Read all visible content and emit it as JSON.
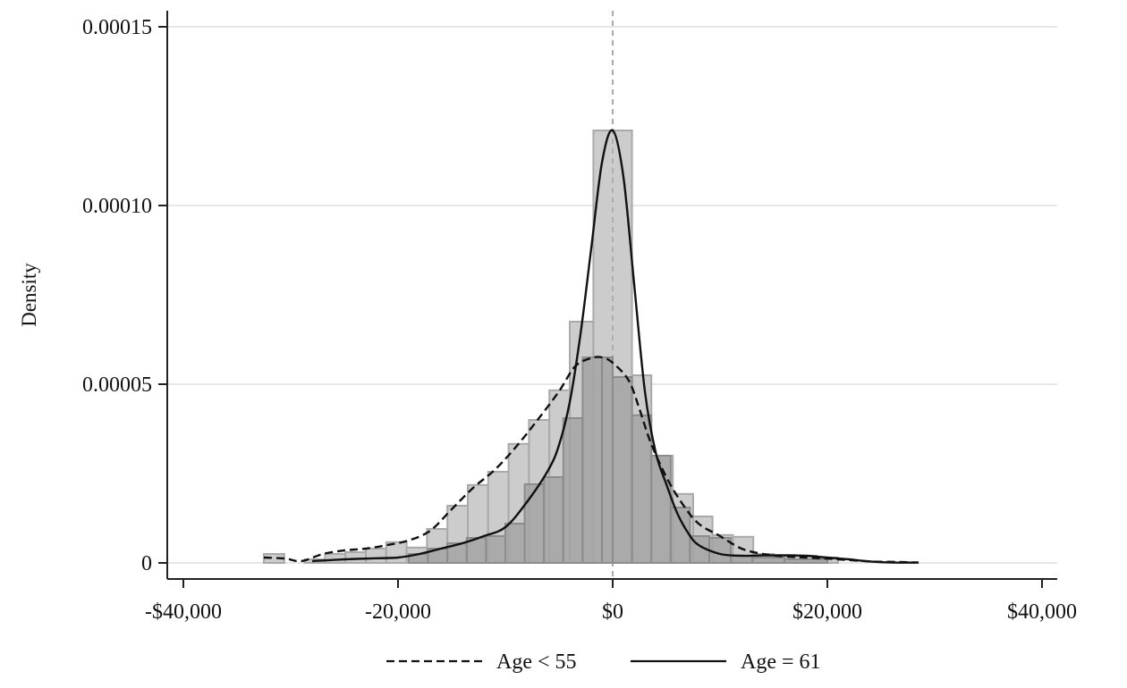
{
  "chart_data": {
    "type": "histogram+density",
    "title": "",
    "xlabel": "",
    "ylabel": "Density",
    "xlim": [
      -42000,
      42000
    ],
    "ylim": [
      0,
      0.00015
    ],
    "x_ticks": [
      -40000,
      -20000,
      0,
      20000,
      40000
    ],
    "x_tick_labels": [
      "-$40,000",
      "-20,000",
      "$0",
      "$20,000",
      "$40,000"
    ],
    "y_ticks": [
      0,
      5e-05,
      0.0001,
      0.00015
    ],
    "y_tick_labels": [
      "0",
      "0.00005",
      "0.00010",
      "0.00015"
    ],
    "grid": "horizontal",
    "reference_line": {
      "x": 0,
      "style": "dashed",
      "color": "#a0a0a0"
    },
    "legend_position": "bottom",
    "colors": {
      "light_bars_fill": "#c9c9c9",
      "light_bars_edge": "#a9a9a9",
      "dark_bars_fill": "#a3a3a3",
      "dark_bars_edge": "#8c8c8c",
      "grid": "#e6e6e6",
      "axis": "#222222",
      "curve": "#111111"
    },
    "histograms": [
      {
        "name": "Age < 55 (light)",
        "bin_width": 1900,
        "bins": [
          {
            "x0": -32500,
            "x1": -30600,
            "density": 2.5e-06
          },
          {
            "x0": -28700,
            "x1": -26800,
            "density": 1e-06
          },
          {
            "x0": -26800,
            "x1": -24900,
            "density": 2.5e-06
          },
          {
            "x0": -24900,
            "x1": -23000,
            "density": 3e-06
          },
          {
            "x0": -23000,
            "x1": -21100,
            "density": 4e-06
          },
          {
            "x0": -21100,
            "x1": -19200,
            "density": 5.8e-06
          },
          {
            "x0": -19200,
            "x1": -17300,
            "density": 4.3e-06
          },
          {
            "x0": -17300,
            "x1": -15400,
            "density": 9.5e-06
          },
          {
            "x0": -15400,
            "x1": -13500,
            "density": 1.6e-05
          },
          {
            "x0": -13500,
            "x1": -11600,
            "density": 2.18e-05
          },
          {
            "x0": -11600,
            "x1": -9700,
            "density": 2.55e-05
          },
          {
            "x0": -9700,
            "x1": -7800,
            "density": 3.33e-05
          },
          {
            "x0": -7800,
            "x1": -5900,
            "density": 4e-05
          },
          {
            "x0": -5900,
            "x1": -4000,
            "density": 4.83e-05
          },
          {
            "x0": -4000,
            "x1": -1800,
            "density": 6.75e-05
          },
          {
            "x0": -1800,
            "x1": 1800,
            "density": 0.000121
          },
          {
            "x0": 1800,
            "x1": 3600,
            "density": 5.25e-05
          },
          {
            "x0": 3600,
            "x1": 5600,
            "density": 3e-05
          },
          {
            "x0": 5600,
            "x1": 7500,
            "density": 1.93e-05
          },
          {
            "x0": 7500,
            "x1": 9300,
            "density": 1.3e-05
          },
          {
            "x0": 9300,
            "x1": 11200,
            "density": 7.8e-06
          },
          {
            "x0": 11200,
            "x1": 13100,
            "density": 7.3e-06
          },
          {
            "x0": 13100,
            "x1": 15000,
            "density": 2.5e-06
          },
          {
            "x0": 15000,
            "x1": 17000,
            "density": 2.2e-06
          },
          {
            "x0": 17000,
            "x1": 19000,
            "density": 2e-06
          },
          {
            "x0": 19000,
            "x1": 21000,
            "density": 1.5e-06
          }
        ]
      },
      {
        "name": "Age = 61 (dark)",
        "bin_width": 1800,
        "bins": [
          {
            "x0": -19000,
            "x1": -17200,
            "density": 2.5e-06
          },
          {
            "x0": -17200,
            "x1": -15400,
            "density": 4e-06
          },
          {
            "x0": -15400,
            "x1": -13600,
            "density": 5.5e-06
          },
          {
            "x0": -13600,
            "x1": -11800,
            "density": 7e-06
          },
          {
            "x0": -11800,
            "x1": -10000,
            "density": 7.5e-06
          },
          {
            "x0": -10000,
            "x1": -8200,
            "density": 1.1e-05
          },
          {
            "x0": -8200,
            "x1": -6400,
            "density": 2.2e-05
          },
          {
            "x0": -6400,
            "x1": -4600,
            "density": 2.4e-05
          },
          {
            "x0": -4600,
            "x1": -2800,
            "density": 4.05e-05
          },
          {
            "x0": -2800,
            "x1": -1000,
            "density": 5.75e-05
          },
          {
            "x0": -1000,
            "x1": 0,
            "density": 5.75e-05
          },
          {
            "x0": 0,
            "x1": 1800,
            "density": 5.2e-05
          },
          {
            "x0": 1800,
            "x1": 3600,
            "density": 4.13e-05
          },
          {
            "x0": 3600,
            "x1": 5400,
            "density": 3e-05
          },
          {
            "x0": 5400,
            "x1": 7200,
            "density": 1.55e-05
          },
          {
            "x0": 7200,
            "x1": 9000,
            "density": 7.5e-06
          },
          {
            "x0": 9000,
            "x1": 11000,
            "density": 7e-06
          },
          {
            "x0": 11000,
            "x1": 13000,
            "density": 2e-06
          },
          {
            "x0": 13000,
            "x1": 16000,
            "density": 1.5e-06
          },
          {
            "x0": 16000,
            "x1": 20000,
            "density": 1e-06
          }
        ]
      }
    ],
    "series": [
      {
        "name": "Age < 55",
        "style": "dashed",
        "x": [
          -32500,
          -30500,
          -29000,
          -27000,
          -25000,
          -23000,
          -21000,
          -19000,
          -17000,
          -15000,
          -13000,
          -11000,
          -9000,
          -7000,
          -5000,
          -3500,
          -2000,
          -1000,
          0,
          1500,
          2500,
          3500,
          5000,
          6500,
          8000,
          10000,
          12000,
          14000,
          16000,
          18000,
          20000,
          22000,
          24000,
          26000,
          28500
        ],
        "y": [
          1.5e-06,
          1.2e-06,
          5e-07,
          2.5e-06,
          3.5e-06,
          4e-06,
          5e-06,
          6.3e-06,
          9e-06,
          1.5e-05,
          2.1e-05,
          2.6e-05,
          3.25e-05,
          4e-05,
          4.8e-05,
          5.5e-05,
          5.73e-05,
          5.75e-05,
          5.6e-05,
          5.1e-05,
          4.3e-05,
          3.4e-05,
          2.4e-05,
          1.65e-05,
          1.1e-05,
          7.5e-06,
          4e-06,
          2.5e-06,
          1.8e-06,
          1.5e-06,
          1.2e-06,
          8e-07,
          4e-07,
          3e-07,
          1e-07
        ]
      },
      {
        "name": "Age = 61",
        "style": "solid",
        "x": [
          -28000,
          -25000,
          -22000,
          -20000,
          -18000,
          -16000,
          -14000,
          -12000,
          -10000,
          -8000,
          -6000,
          -5000,
          -4000,
          -3000,
          -2000,
          -1000,
          0,
          1000,
          2000,
          3000,
          4000,
          5000,
          6000,
          7000,
          8000,
          10000,
          12000,
          14000,
          16000,
          18000,
          20000,
          22000,
          24000,
          26000,
          28500
        ],
        "y": [
          5e-07,
          1e-06,
          1.3e-06,
          1.5e-06,
          2.5e-06,
          4e-06,
          5.5e-06,
          7.5e-06,
          1e-05,
          1.7e-05,
          2.6e-05,
          3.3e-05,
          4.5e-05,
          6.4e-05,
          8.8e-05,
          0.000112,
          0.000121,
          0.000108,
          7.8e-05,
          4.8e-05,
          3.1e-05,
          2.2e-05,
          1.4e-05,
          8.5e-06,
          5e-06,
          2.5e-06,
          2e-06,
          2.1e-06,
          2.1e-06,
          2e-06,
          1.5e-06,
          1e-06,
          4e-07,
          1e-07,
          1e-07
        ]
      }
    ]
  },
  "legend": {
    "items": [
      {
        "label": "Age < 55",
        "style": "dashed"
      },
      {
        "label": "Age = 61",
        "style": "solid"
      }
    ]
  },
  "axes": {
    "ylabel": "Density"
  }
}
